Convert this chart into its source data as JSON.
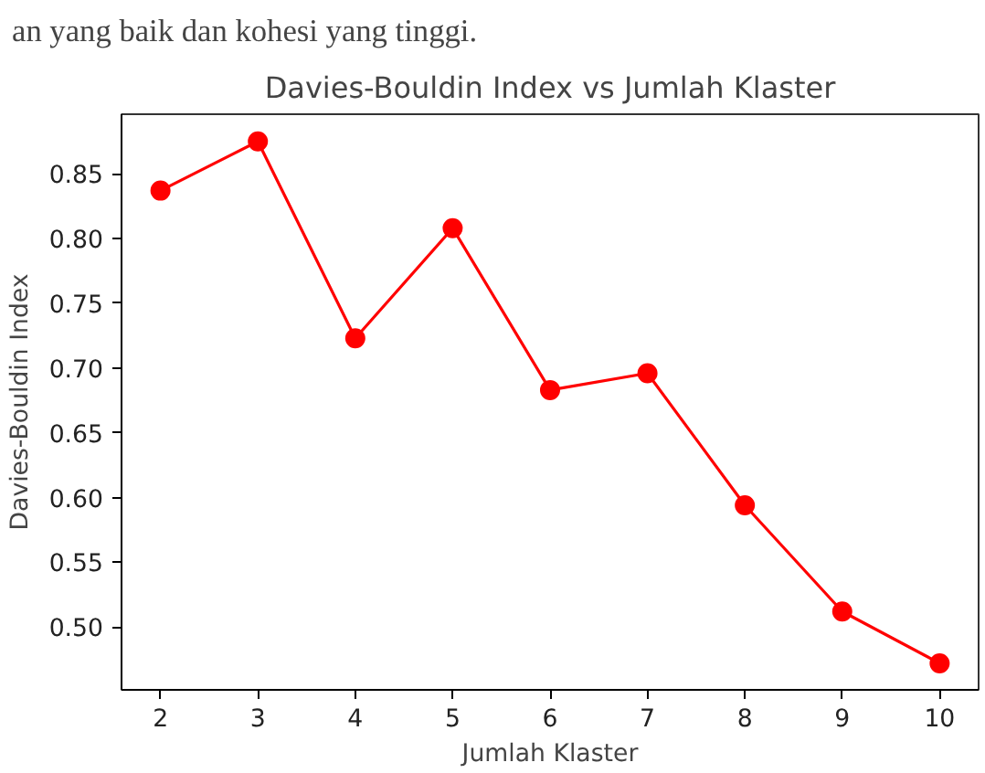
{
  "chart_data": {
    "type": "line",
    "title": "Davies-Bouldin Index vs Jumlah Klaster",
    "xlabel": "Jumlah Klaster",
    "ylabel": "Davies-Bouldin Index",
    "annotations": [
      "an yang baik dan kohesi yang tinggi."
    ],
    "x": [
      2,
      3,
      4,
      5,
      6,
      7,
      8,
      9,
      10
    ],
    "series": [
      {
        "color": "#ff0000",
        "values": [
          0.837,
          0.875,
          0.723,
          0.808,
          0.683,
          0.696,
          0.594,
          0.512,
          0.472
        ]
      }
    ],
    "xlim": [
      1.6,
      10.4
    ],
    "ylim": [
      0.4515,
      0.896
    ],
    "xticks": [
      2,
      3,
      4,
      5,
      6,
      7,
      8,
      9,
      10
    ],
    "yticks": [
      {
        "value": 0.5,
        "label": "0.50"
      },
      0.55,
      {
        "value": 0.6,
        "label": "0.60"
      },
      0.65,
      {
        "value": 0.7,
        "label": "0.70"
      },
      0.75,
      {
        "value": 0.8,
        "label": "0.80"
      },
      0.85
    ],
    "marker": "circle",
    "line_style": "solid",
    "grid": false
  }
}
